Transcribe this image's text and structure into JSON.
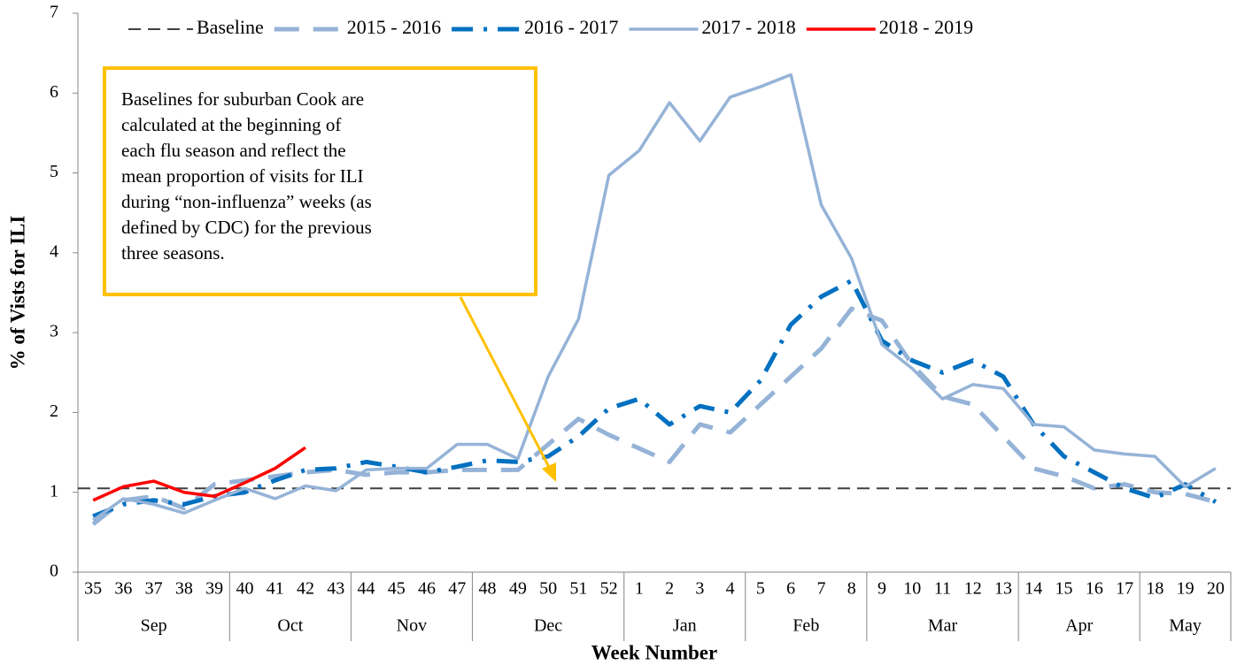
{
  "chart_data": {
    "type": "line",
    "y_label": "% of Vists for ILI",
    "x_label": "Week Number",
    "categories": [
      "35",
      "36",
      "37",
      "38",
      "39",
      "40",
      "41",
      "42",
      "43",
      "44",
      "45",
      "46",
      "47",
      "48",
      "49",
      "50",
      "51",
      "52",
      "1",
      "2",
      "3",
      "4",
      "5",
      "6",
      "7",
      "8",
      "9",
      "10",
      "11",
      "12",
      "13",
      "14",
      "15",
      "16",
      "17",
      "18",
      "19",
      "20"
    ],
    "category_groups": [
      "Sep",
      "Sep",
      "Sep",
      "Sep",
      "Sep",
      "Oct",
      "Oct",
      "Oct",
      "Oct",
      "Nov",
      "Nov",
      "Nov",
      "Nov",
      "Dec",
      "Dec",
      "Dec",
      "Dec",
      "Dec",
      "Jan",
      "Jan",
      "Jan",
      "Jan",
      "Feb",
      "Feb",
      "Feb",
      "Feb",
      "Mar",
      "Mar",
      "Mar",
      "Mar",
      "Mar",
      "Apr",
      "Apr",
      "Apr",
      "Apr",
      "May",
      "May",
      "May"
    ],
    "ylim": [
      0,
      7
    ],
    "yticks": [
      0,
      1,
      2,
      3,
      4,
      5,
      6,
      7
    ],
    "grid": false,
    "legend": "top",
    "baseline": {
      "name": "Baseline",
      "value": 1.05,
      "color": "#404040",
      "line_style": "dash"
    },
    "series": [
      {
        "name": "2015 - 2016",
        "color": "#95B3D7",
        "line_style": "longdash",
        "values": [
          0.6,
          0.9,
          0.95,
          0.8,
          1.1,
          1.15,
          1.2,
          1.25,
          1.28,
          1.22,
          1.25,
          1.25,
          1.28,
          1.28,
          1.28,
          1.6,
          1.92,
          1.72,
          1.55,
          1.38,
          1.85,
          1.75,
          2.1,
          2.45,
          2.8,
          3.3,
          3.15,
          2.6,
          2.2,
          2.1,
          1.7,
          1.3,
          1.2,
          1.05,
          1.1,
          1.0,
          0.98,
          0.88
        ]
      },
      {
        "name": "2016 - 2017",
        "color": "#0070C0",
        "line_style": "dashdot",
        "values": [
          0.7,
          0.85,
          0.9,
          0.85,
          0.95,
          1.0,
          1.15,
          1.28,
          1.3,
          1.38,
          1.32,
          1.25,
          1.32,
          1.4,
          1.38,
          1.45,
          1.7,
          2.05,
          2.17,
          1.85,
          2.08,
          2.0,
          2.4,
          3.1,
          3.45,
          3.65,
          2.9,
          2.65,
          2.5,
          2.65,
          2.45,
          1.85,
          1.45,
          1.25,
          1.05,
          0.93,
          1.1,
          0.88
        ]
      },
      {
        "name": "2017 - 2018",
        "color": "#95B3D7",
        "line_style": "solid",
        "values": [
          0.65,
          0.92,
          0.85,
          0.74,
          0.9,
          1.05,
          0.92,
          1.08,
          1.02,
          1.28,
          1.3,
          1.3,
          1.6,
          1.6,
          1.42,
          2.45,
          3.17,
          4.97,
          5.28,
          5.88,
          5.4,
          5.95,
          6.08,
          6.23,
          4.6,
          3.93,
          2.85,
          2.55,
          2.17,
          2.35,
          2.3,
          1.85,
          1.82,
          1.53,
          1.48,
          1.45,
          1.07,
          1.3
        ]
      },
      {
        "name": "2018 - 2019",
        "color": "#FF0000",
        "line_style": "solid",
        "values": [
          0.9,
          1.07,
          1.14,
          1.0,
          0.95,
          1.12,
          1.3,
          1.56,
          null,
          null,
          null,
          null,
          null,
          null,
          null,
          null,
          null,
          null,
          null,
          null,
          null,
          null,
          null,
          null,
          null,
          null,
          null,
          null,
          null,
          null,
          null,
          null,
          null,
          null,
          null,
          null,
          null,
          null
        ]
      }
    ],
    "annotation": [
      "Baselines for suburban Cook are",
      "calculated at the beginning of",
      "each flu season and reflect the",
      "mean proportion of visits for ILI",
      "during “non-influenza” weeks (as",
      "defined by CDC) for the previous",
      "three seasons."
    ]
  }
}
